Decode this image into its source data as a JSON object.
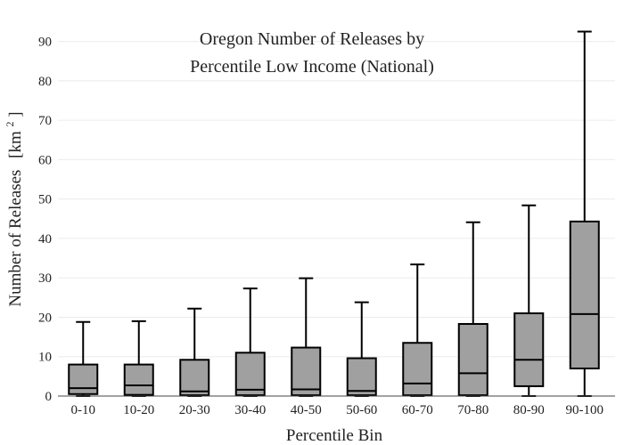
{
  "chart_data": {
    "type": "box",
    "title_lines": [
      "Oregon Number of Releases by",
      "Percentile Low Income (National)"
    ],
    "xlabel": "Percentile Bin",
    "ylabel": "Number of Releases",
    "ylabel_unit": "[km",
    "ylabel_unit_sup": "2",
    "ylabel_unit_close": "]",
    "ylim": [
      0,
      96
    ],
    "yticks": [
      0,
      10,
      20,
      30,
      40,
      50,
      60,
      70,
      80,
      90
    ],
    "grid": true,
    "box_fill": "#a0a0a0",
    "box_stroke": "#000000",
    "categories": [
      "0-10",
      "10-20",
      "20-30",
      "30-40",
      "40-50",
      "50-60",
      "60-70",
      "70-80",
      "80-90",
      "90-100"
    ],
    "boxes": [
      {
        "min": 0,
        "q1": 0.5,
        "median": 2.0,
        "q3": 8.0,
        "max": 18.8
      },
      {
        "min": 0,
        "q1": 0.3,
        "median": 2.7,
        "q3": 8.0,
        "max": 19.0
      },
      {
        "min": 0,
        "q1": 0.2,
        "median": 1.2,
        "q3": 9.2,
        "max": 22.2
      },
      {
        "min": 0,
        "q1": 0.2,
        "median": 1.6,
        "q3": 11.0,
        "max": 27.3
      },
      {
        "min": 0,
        "q1": 0.2,
        "median": 1.7,
        "q3": 12.3,
        "max": 29.9
      },
      {
        "min": 0,
        "q1": 0.2,
        "median": 1.3,
        "q3": 9.6,
        "max": 23.8
      },
      {
        "min": 0,
        "q1": 0.2,
        "median": 3.2,
        "q3": 13.5,
        "max": 33.4
      },
      {
        "min": 0,
        "q1": 0.2,
        "median": 5.8,
        "q3": 18.3,
        "max": 44.1
      },
      {
        "min": 0,
        "q1": 2.5,
        "median": 9.2,
        "q3": 21.0,
        "max": 48.4
      },
      {
        "min": 0,
        "q1": 7.0,
        "median": 20.8,
        "q3": 44.3,
        "max": 92.5
      }
    ]
  }
}
